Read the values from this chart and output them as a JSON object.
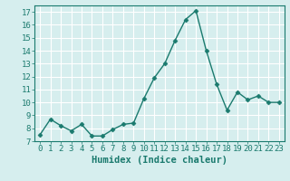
{
  "x": [
    0,
    1,
    2,
    3,
    4,
    5,
    6,
    7,
    8,
    9,
    10,
    11,
    12,
    13,
    14,
    15,
    16,
    17,
    18,
    19,
    20,
    21,
    22,
    23
  ],
  "y": [
    7.5,
    8.7,
    8.2,
    7.8,
    8.3,
    7.4,
    7.4,
    7.9,
    8.3,
    8.4,
    10.3,
    11.9,
    13.0,
    14.8,
    16.4,
    17.1,
    14.0,
    11.4,
    9.4,
    10.8,
    10.2,
    10.5,
    10.0,
    10.0
  ],
  "line_color": "#1a7a6e",
  "marker": "D",
  "marker_size": 2.5,
  "bg_color": "#d6eeee",
  "grid_color": "#ffffff",
  "grid_minor_color": "#e8f8f8",
  "xlabel": "Humidex (Indice chaleur)",
  "ylim": [
    7,
    17.5
  ],
  "yticks": [
    7,
    8,
    9,
    10,
    11,
    12,
    13,
    14,
    15,
    16,
    17
  ],
  "xticks": [
    0,
    1,
    2,
    3,
    4,
    5,
    6,
    7,
    8,
    9,
    10,
    11,
    12,
    13,
    14,
    15,
    16,
    17,
    18,
    19,
    20,
    21,
    22,
    23
  ],
  "xlim": [
    -0.5,
    23.5
  ],
  "tick_color": "#1a7a6e",
  "label_fontsize": 7.5,
  "tick_fontsize": 6.5,
  "spine_color": "#1a7a6e"
}
